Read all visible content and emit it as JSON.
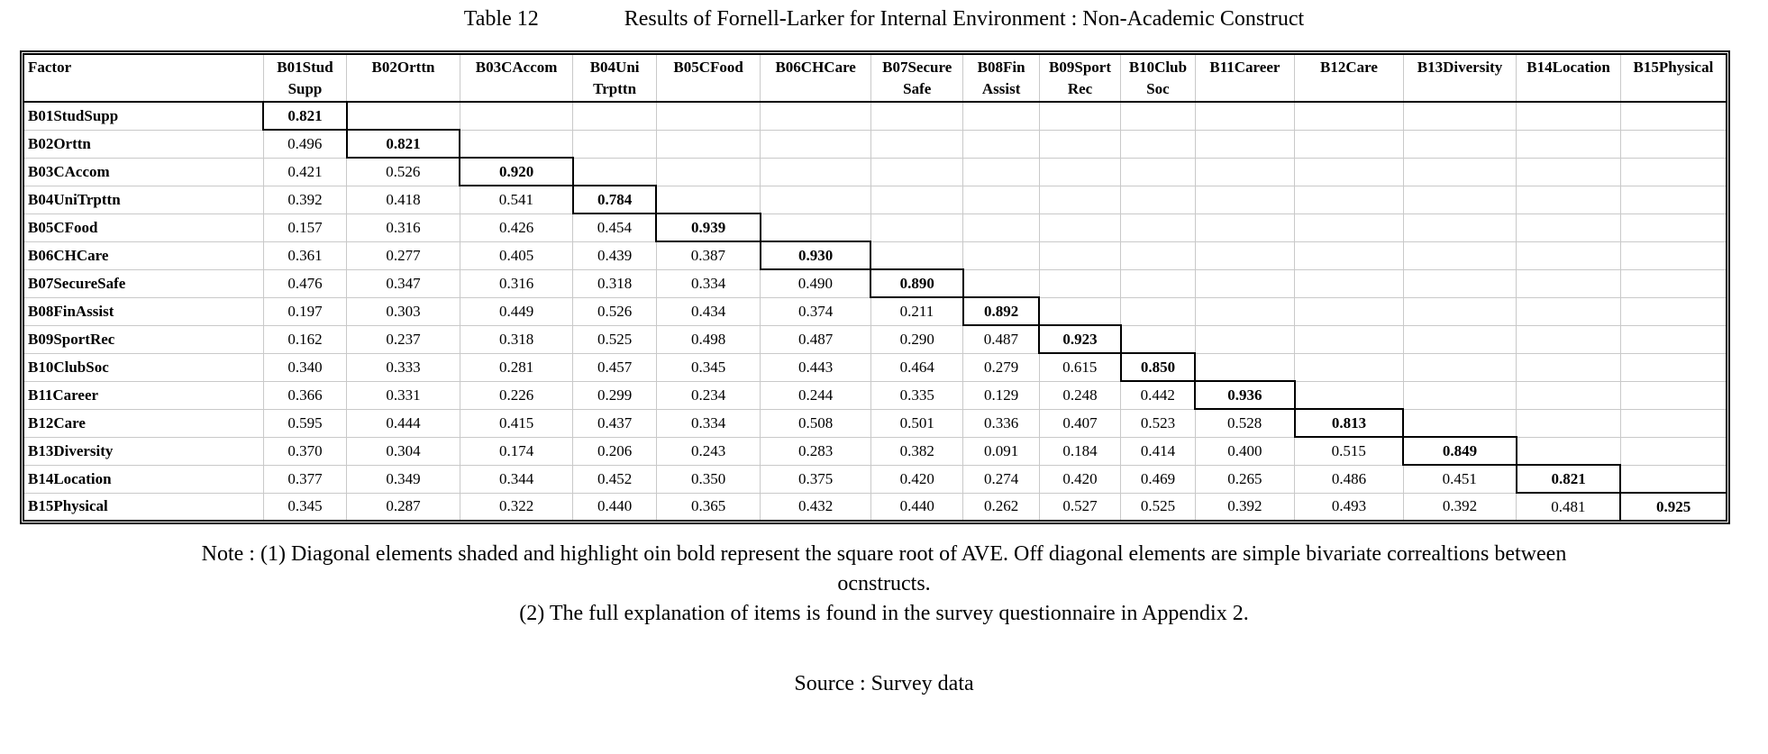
{
  "title": {
    "table_number": "Table 12",
    "table_caption": "Results of Fornell-Larker for Internal Environment : Non-Academic Construct"
  },
  "table": {
    "corner_header": "Factor",
    "columns": [
      {
        "line1": "B01Stud",
        "line2": "Supp"
      },
      {
        "line1": "B02Orttn",
        "line2": ""
      },
      {
        "line1": "B03CAccom",
        "line2": ""
      },
      {
        "line1": "B04Uni",
        "line2": "Trpttn"
      },
      {
        "line1": "B05CFood",
        "line2": ""
      },
      {
        "line1": "B06CHCare",
        "line2": ""
      },
      {
        "line1": "B07Secure",
        "line2": "Safe"
      },
      {
        "line1": "B08Fin",
        "line2": "Assist"
      },
      {
        "line1": "B09Sport",
        "line2": "Rec"
      },
      {
        "line1": "B10Club",
        "line2": "Soc"
      },
      {
        "line1": "B11Career",
        "line2": ""
      },
      {
        "line1": "B12Care",
        "line2": ""
      },
      {
        "line1": "B13Diversity",
        "line2": ""
      },
      {
        "line1": "B14Location",
        "line2": ""
      },
      {
        "line1": "B15Physical",
        "line2": ""
      }
    ],
    "rows": [
      {
        "label": "B01StudSupp",
        "values": [
          "0.821"
        ]
      },
      {
        "label": "B02Orttn",
        "values": [
          "0.496",
          "0.821"
        ]
      },
      {
        "label": "B03CAccom",
        "values": [
          "0.421",
          "0.526",
          "0.920"
        ]
      },
      {
        "label": "B04UniTrpttn",
        "values": [
          "0.392",
          "0.418",
          "0.541",
          "0.784"
        ]
      },
      {
        "label": "B05CFood",
        "values": [
          "0.157",
          "0.316",
          "0.426",
          "0.454",
          "0.939"
        ]
      },
      {
        "label": "B06CHCare",
        "values": [
          "0.361",
          "0.277",
          "0.405",
          "0.439",
          "0.387",
          "0.930"
        ]
      },
      {
        "label": "B07SecureSafe",
        "values": [
          "0.476",
          "0.347",
          "0.316",
          "0.318",
          "0.334",
          "0.490",
          "0.890"
        ]
      },
      {
        "label": "B08FinAssist",
        "values": [
          "0.197",
          "0.303",
          "0.449",
          "0.526",
          "0.434",
          "0.374",
          "0.211",
          "0.892"
        ]
      },
      {
        "label": "B09SportRec",
        "values": [
          "0.162",
          "0.237",
          "0.318",
          "0.525",
          "0.498",
          "0.487",
          "0.290",
          "0.487",
          "0.923"
        ]
      },
      {
        "label": "B10ClubSoc",
        "values": [
          "0.340",
          "0.333",
          "0.281",
          "0.457",
          "0.345",
          "0.443",
          "0.464",
          "0.279",
          "0.615",
          "0.850"
        ]
      },
      {
        "label": "B11Career",
        "values": [
          "0.366",
          "0.331",
          "0.226",
          "0.299",
          "0.234",
          "0.244",
          "0.335",
          "0.129",
          "0.248",
          "0.442",
          "0.936"
        ]
      },
      {
        "label": "B12Care",
        "values": [
          "0.595",
          "0.444",
          "0.415",
          "0.437",
          "0.334",
          "0.508",
          "0.501",
          "0.336",
          "0.407",
          "0.523",
          "0.528",
          "0.813"
        ]
      },
      {
        "label": "B13Diversity",
        "values": [
          "0.370",
          "0.304",
          "0.174",
          "0.206",
          "0.243",
          "0.283",
          "0.382",
          "0.091",
          "0.184",
          "0.414",
          "0.400",
          "0.515",
          "0.849"
        ]
      },
      {
        "label": "B14Location",
        "values": [
          "0.377",
          "0.349",
          "0.344",
          "0.452",
          "0.350",
          "0.375",
          "0.420",
          "0.274",
          "0.420",
          "0.469",
          "0.265",
          "0.486",
          "0.451",
          "0.821"
        ]
      },
      {
        "label": "B15Physical",
        "values": [
          "0.345",
          "0.287",
          "0.322",
          "0.440",
          "0.365",
          "0.432",
          "0.440",
          "0.262",
          "0.527",
          "0.525",
          "0.392",
          "0.493",
          "0.392",
          "0.481",
          "0.925"
        ]
      }
    ]
  },
  "notes": [
    "Note : (1)  Diagonal elements shaded and highlight oin bold represent the square root of AVE. Off diagonal elements are simple bivariate correaltions between",
    "ocnstructs.",
    "(2) The full explanation of items is found in the survey questionnaire in Appendix 2."
  ],
  "source": "Source : Survey data",
  "colors": {
    "grid_line": "#c9c9c9",
    "table_border": "#000000",
    "diagonal_border": "#000000",
    "background": "#ffffff",
    "text": "#000000"
  }
}
